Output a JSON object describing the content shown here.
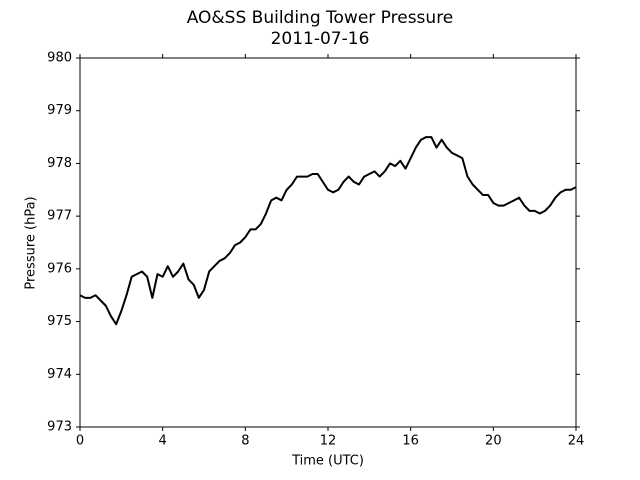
{
  "chart_data": {
    "type": "line",
    "title": "AO&SS Building Tower Pressure",
    "subtitle": "2011-07-16",
    "x_label": "Time (UTC)",
    "y_label": "Pressure (hPa)",
    "xlim": [
      0,
      24
    ],
    "xticks": [
      0,
      4,
      8,
      12,
      16,
      20,
      24
    ],
    "ylim": [
      973,
      980
    ],
    "yticks": [
      973,
      974,
      975,
      976,
      977,
      978,
      979,
      980
    ],
    "grid": false,
    "series": [
      {
        "color": "#000000",
        "x": [
          0,
          0.25,
          0.5,
          0.75,
          1,
          1.25,
          1.5,
          1.75,
          2,
          2.25,
          2.5,
          2.75,
          3,
          3.25,
          3.5,
          3.75,
          4,
          4.25,
          4.5,
          4.75,
          5,
          5.25,
          5.5,
          5.75,
          6,
          6.25,
          6.5,
          6.75,
          7,
          7.25,
          7.5,
          7.75,
          8,
          8.25,
          8.5,
          8.75,
          9,
          9.25,
          9.5,
          9.75,
          10,
          10.25,
          10.5,
          10.75,
          11,
          11.25,
          11.5,
          11.75,
          12,
          12.25,
          12.5,
          12.75,
          13,
          13.25,
          13.5,
          13.75,
          14,
          14.25,
          14.5,
          14.75,
          15,
          15.25,
          15.5,
          15.75,
          16,
          16.25,
          16.5,
          16.75,
          17,
          17.25,
          17.5,
          17.75,
          18,
          18.25,
          18.5,
          18.75,
          19,
          19.25,
          19.5,
          19.75,
          20,
          20.25,
          20.5,
          20.75,
          21,
          21.25,
          21.5,
          21.75,
          22,
          22.25,
          22.5,
          22.75,
          23,
          23.25,
          23.5,
          23.75,
          24
        ],
        "values": [
          975.5,
          975.45,
          975.45,
          975.5,
          975.4,
          975.3,
          975.1,
          974.95,
          975.2,
          975.5,
          975.85,
          975.9,
          975.95,
          975.85,
          975.45,
          975.9,
          975.85,
          976.05,
          975.85,
          975.95,
          976.1,
          975.8,
          975.7,
          975.45,
          975.6,
          975.95,
          976.05,
          976.15,
          976.2,
          976.3,
          976.45,
          976.5,
          976.6,
          976.75,
          976.75,
          976.85,
          977.05,
          977.3,
          977.35,
          977.3,
          977.5,
          977.6,
          977.75,
          977.75,
          977.75,
          977.8,
          977.8,
          977.65,
          977.5,
          977.45,
          977.5,
          977.65,
          977.75,
          977.65,
          977.6,
          977.75,
          977.8,
          977.85,
          977.75,
          977.85,
          978.0,
          977.95,
          978.05,
          977.9,
          978.1,
          978.3,
          978.45,
          978.5,
          978.5,
          978.3,
          978.45,
          978.3,
          978.2,
          978.15,
          978.1,
          977.75,
          977.6,
          977.5,
          977.4,
          977.4,
          977.25,
          977.2,
          977.2,
          977.25,
          977.3,
          977.35,
          977.2,
          977.1,
          977.1,
          977.05,
          977.1,
          977.2,
          977.35,
          977.45,
          977.5,
          977.5,
          977.55
        ]
      }
    ]
  }
}
